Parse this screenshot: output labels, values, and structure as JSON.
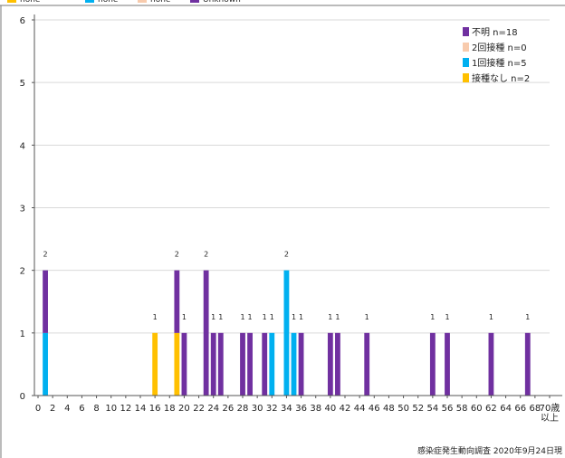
{
  "chart_data": {
    "type": "bar",
    "stacked": true,
    "top_legend_partial": [
      "none",
      "none",
      "none",
      "Unknown"
    ],
    "legend": [
      {
        "label": "不明 n=18",
        "color": "#7030A0"
      },
      {
        "label": "2回接種 n=0",
        "color": "#F8CBAD"
      },
      {
        "label": "1回接種 n=5",
        "color": "#00B0F0"
      },
      {
        "label": "接種なし n=2",
        "color": "#FFC000"
      }
    ],
    "legend_placement": "top-right",
    "y_ticks": [
      "0",
      "1",
      "2",
      "3",
      "4",
      "5",
      "6"
    ],
    "ylim": [
      0,
      6
    ],
    "x_ticks": [
      "0",
      "2",
      "4",
      "6",
      "8",
      "10",
      "12",
      "14",
      "16",
      "18",
      "20",
      "22",
      "24",
      "26",
      "28",
      "30",
      "32",
      "34",
      "36",
      "38",
      "40",
      "42",
      "44",
      "46",
      "48",
      "50",
      "52",
      "54",
      "56",
      "58",
      "60",
      "62",
      "64",
      "66",
      "68",
      "70歳"
    ],
    "x_tick_suffix": "以上",
    "xlim": [
      0,
      70
    ],
    "grid": true,
    "bars": [
      {
        "age": 1,
        "label": "2",
        "segments": [
          {
            "series": "1回接種",
            "value": 1,
            "color": "#00B0F0"
          },
          {
            "series": "不明",
            "value": 1,
            "color": "#7030A0"
          }
        ]
      },
      {
        "age": 16,
        "label": "1",
        "segments": [
          {
            "series": "接種なし",
            "value": 1,
            "color": "#FFC000"
          }
        ]
      },
      {
        "age": 19,
        "label": "2",
        "segments": [
          {
            "series": "接種なし",
            "value": 1,
            "color": "#FFC000"
          },
          {
            "series": "不明",
            "value": 1,
            "color": "#7030A0"
          }
        ]
      },
      {
        "age": 20,
        "label": "1",
        "segments": [
          {
            "series": "不明",
            "value": 1,
            "color": "#7030A0"
          }
        ]
      },
      {
        "age": 23,
        "label": "2",
        "segments": [
          {
            "series": "不明",
            "value": 2,
            "color": "#7030A0"
          }
        ]
      },
      {
        "age": 24,
        "label": "1",
        "segments": [
          {
            "series": "不明",
            "value": 1,
            "color": "#7030A0"
          }
        ]
      },
      {
        "age": 25,
        "label": "1",
        "segments": [
          {
            "series": "不明",
            "value": 1,
            "color": "#7030A0"
          }
        ]
      },
      {
        "age": 28,
        "label": "1",
        "segments": [
          {
            "series": "不明",
            "value": 1,
            "color": "#7030A0"
          }
        ]
      },
      {
        "age": 29,
        "label": "1",
        "segments": [
          {
            "series": "不明",
            "value": 1,
            "color": "#7030A0"
          }
        ]
      },
      {
        "age": 31,
        "label": "1",
        "segments": [
          {
            "series": "不明",
            "value": 1,
            "color": "#7030A0"
          }
        ]
      },
      {
        "age": 32,
        "label": "1",
        "segments": [
          {
            "series": "1回接種",
            "value": 1,
            "color": "#00B0F0"
          }
        ]
      },
      {
        "age": 34,
        "label": "2",
        "segments": [
          {
            "series": "1回接種",
            "value": 2,
            "color": "#00B0F0"
          }
        ]
      },
      {
        "age": 35,
        "label": "1",
        "segments": [
          {
            "series": "1回接種",
            "value": 1,
            "color": "#00B0F0"
          }
        ]
      },
      {
        "age": 36,
        "label": "1",
        "segments": [
          {
            "series": "不明",
            "value": 1,
            "color": "#7030A0"
          }
        ]
      },
      {
        "age": 40,
        "label": "1",
        "segments": [
          {
            "series": "不明",
            "value": 1,
            "color": "#7030A0"
          }
        ]
      },
      {
        "age": 41,
        "label": "1",
        "segments": [
          {
            "series": "不明",
            "value": 1,
            "color": "#7030A0"
          }
        ]
      },
      {
        "age": 45,
        "label": "1",
        "segments": [
          {
            "series": "不明",
            "value": 1,
            "color": "#7030A0"
          }
        ]
      },
      {
        "age": 54,
        "label": "1",
        "segments": [
          {
            "series": "不明",
            "value": 1,
            "color": "#7030A0"
          }
        ]
      },
      {
        "age": 56,
        "label": "1",
        "segments": [
          {
            "series": "不明",
            "value": 1,
            "color": "#7030A0"
          }
        ]
      },
      {
        "age": 62,
        "label": "1",
        "segments": [
          {
            "series": "不明",
            "value": 1,
            "color": "#7030A0"
          }
        ]
      },
      {
        "age": 67,
        "label": "1",
        "segments": [
          {
            "series": "不明",
            "value": 1,
            "color": "#7030A0"
          }
        ]
      }
    ],
    "source": "感染症発生動向調査 2020年9月24日現"
  }
}
